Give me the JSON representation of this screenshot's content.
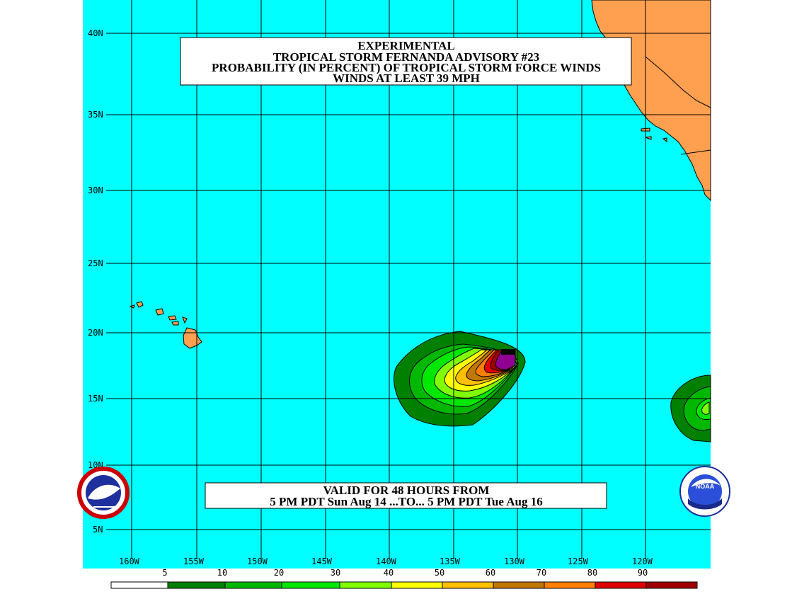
{
  "title": {
    "line1": "EXPERIMENTAL",
    "line2": "TROPICAL STORM FERNANDA ADVISORY #23",
    "line3": "PROBABILITY (IN PERCENT) OF TROPICAL STORM FORCE WINDS",
    "line4": "WINDS AT LEAST 39 MPH"
  },
  "validity": {
    "line1": "VALID FOR 48 HOURS FROM",
    "line2": "5 PM PDT Sun Aug 14 ...TO... 5 PM PDT Tue Aug 16"
  },
  "lat_labels": [
    "40N",
    "35N",
    "30N",
    "25N",
    "20N",
    "15N",
    "10N",
    "5N"
  ],
  "lon_labels": [
    "160W",
    "155W",
    "150W",
    "145W",
    "140W",
    "135W",
    "130W",
    "125W",
    "120W"
  ],
  "scale": {
    "ticks": [
      "5",
      "10",
      "20",
      "30",
      "40",
      "50",
      "60",
      "70",
      "80",
      "90"
    ],
    "colors": [
      "#ffffff",
      "#008000",
      "#00b800",
      "#00e800",
      "#80ff00",
      "#ffff00",
      "#ffc000",
      "#c07800",
      "#ff8000",
      "#e00000",
      "#a00000",
      "#900090"
    ]
  },
  "colors": {
    "ocean": "#00ffff",
    "land": "#ffa050",
    "grid": "#000000"
  },
  "logos": {
    "left": "NATIONAL WEATHER SERVICE",
    "right": "NOAA"
  }
}
